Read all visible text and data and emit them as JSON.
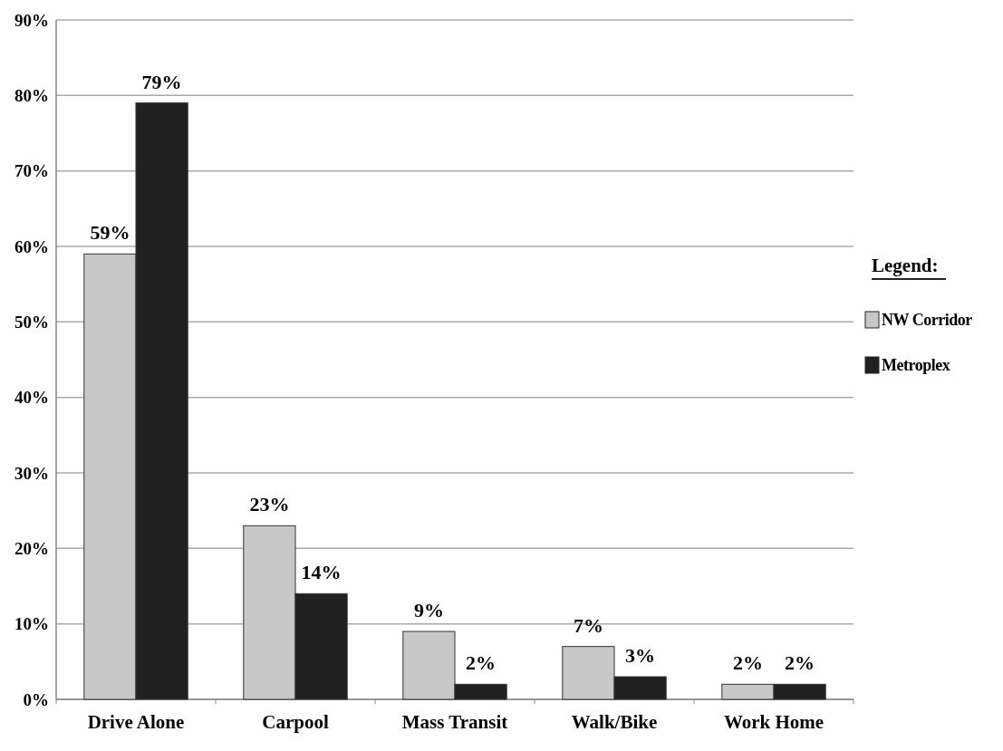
{
  "chart_data": {
    "type": "bar",
    "categories": [
      "Drive Alone",
      "Carpool",
      "Mass Transit",
      "Walk/Bike",
      "Work Home"
    ],
    "series": [
      {
        "name": "NW Corridor",
        "color": "#c8c8c8",
        "values": [
          59,
          23,
          9,
          7,
          2
        ]
      },
      {
        "name": "Metroplex",
        "color": "#202020",
        "values": [
          79,
          14,
          2,
          3,
          2
        ]
      }
    ],
    "ylim": [
      0,
      90
    ],
    "yticks": [
      {
        "value": 0,
        "label": "0%"
      },
      {
        "value": 10,
        "label": "10%"
      },
      {
        "value": 20,
        "label": "20%"
      },
      {
        "value": 30,
        "label": "30%"
      },
      {
        "value": 40,
        "label": "40%"
      },
      {
        "value": 50,
        "label": "50%"
      },
      {
        "value": 60,
        "label": "60%"
      },
      {
        "value": 70,
        "label": "70%"
      },
      {
        "value": 80,
        "label": "80%"
      },
      {
        "value": 90,
        "label": "90%"
      }
    ],
    "grid": "y",
    "legend": "right",
    "legend_title": "Legend:",
    "value_labels": [
      [
        "59%",
        "23%",
        "9%",
        "7%",
        "2%"
      ],
      [
        "79%",
        "14%",
        "2%",
        "3%",
        "2%"
      ]
    ]
  }
}
